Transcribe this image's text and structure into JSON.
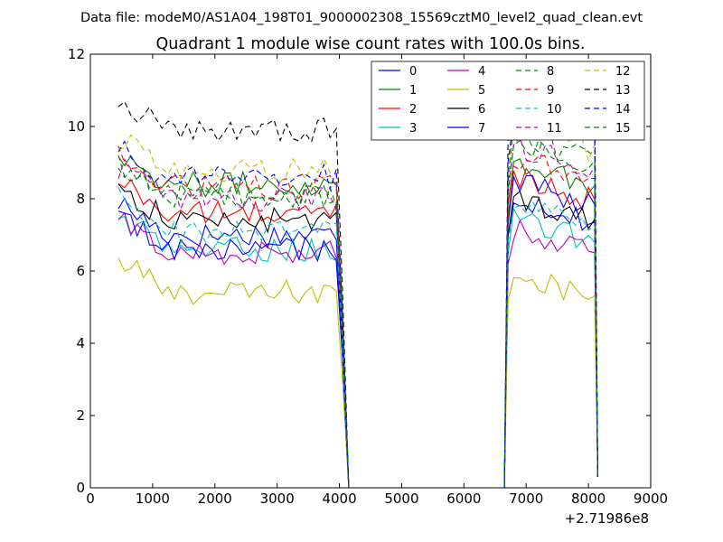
{
  "chart_data": {
    "type": "line",
    "suptitle": "Data file: modeM0/AS1A04_198T01_9000002308_15569cztM0_level2_quad_clean.evt",
    "title": "Quadrant 1 module wise count rates with 100.0s bins.",
    "xlabel": "",
    "ylabel": "",
    "x_offset_label": "+2.71986e8",
    "xlim": [
      0,
      9000
    ],
    "ylim": [
      0,
      12
    ],
    "xticks": [
      "0",
      "1000",
      "2000",
      "3000",
      "4000",
      "5000",
      "6000",
      "7000",
      "8000",
      "9000"
    ],
    "yticks": [
      "0",
      "2",
      "4",
      "6",
      "8",
      "10",
      "12"
    ],
    "legend_position": "top-right",
    "legend_columns": 4,
    "bin_seconds": 100,
    "segments": [
      [
        450,
        4150
      ],
      [
        6650,
        8150
      ]
    ],
    "gap_value": 0,
    "series": [
      {
        "name": "0",
        "color": "#0000ff",
        "style": "solid",
        "level1": 7.0,
        "level2": 8.2
      },
      {
        "name": "1",
        "color": "#008000",
        "style": "solid",
        "level1": 8.4,
        "level2": 9.2
      },
      {
        "name": "2",
        "color": "#ff0000",
        "style": "solid",
        "level1": 7.6,
        "level2": 8.8
      },
      {
        "name": "3",
        "color": "#00bfbf",
        "style": "solid",
        "level1": 6.6,
        "level2": 7.6
      },
      {
        "name": "4",
        "color": "#bf00bf",
        "style": "solid",
        "level1": 6.5,
        "level2": 7.3
      },
      {
        "name": "5",
        "color": "#bfbf00",
        "style": "solid",
        "level1": 5.4,
        "level2": 6.1
      },
      {
        "name": "6",
        "color": "#000000",
        "style": "solid",
        "level1": 7.4,
        "level2": 8.2
      },
      {
        "name": "7",
        "color": "#0000ff",
        "style": "solid",
        "level1": 6.6,
        "level2": 8.6
      },
      {
        "name": "8",
        "color": "#008000",
        "style": "dashed",
        "level1": 8.1,
        "level2": 9.9
      },
      {
        "name": "9",
        "color": "#ff0000",
        "style": "dashed",
        "level1": 8.3,
        "level2": 9.3
      },
      {
        "name": "10",
        "color": "#00bfbf",
        "style": "dashed",
        "level1": 7.1,
        "level2": 8.0
      },
      {
        "name": "11",
        "color": "#bf00bf",
        "style": "dashed",
        "level1": 8.0,
        "level2": 9.6
      },
      {
        "name": "12",
        "color": "#bfbf00",
        "style": "dashed",
        "level1": 8.8,
        "level2": 10.2
      },
      {
        "name": "13",
        "color": "#000000",
        "style": "dashed",
        "level1": 9.9,
        "level2": 11.4
      },
      {
        "name": "14",
        "color": "#0000ff",
        "style": "dashed",
        "level1": 8.6,
        "level2": 10.6
      },
      {
        "name": "15",
        "color": "#008000",
        "style": "dashed",
        "level1": 8.1,
        "level2": 9.7
      }
    ]
  }
}
